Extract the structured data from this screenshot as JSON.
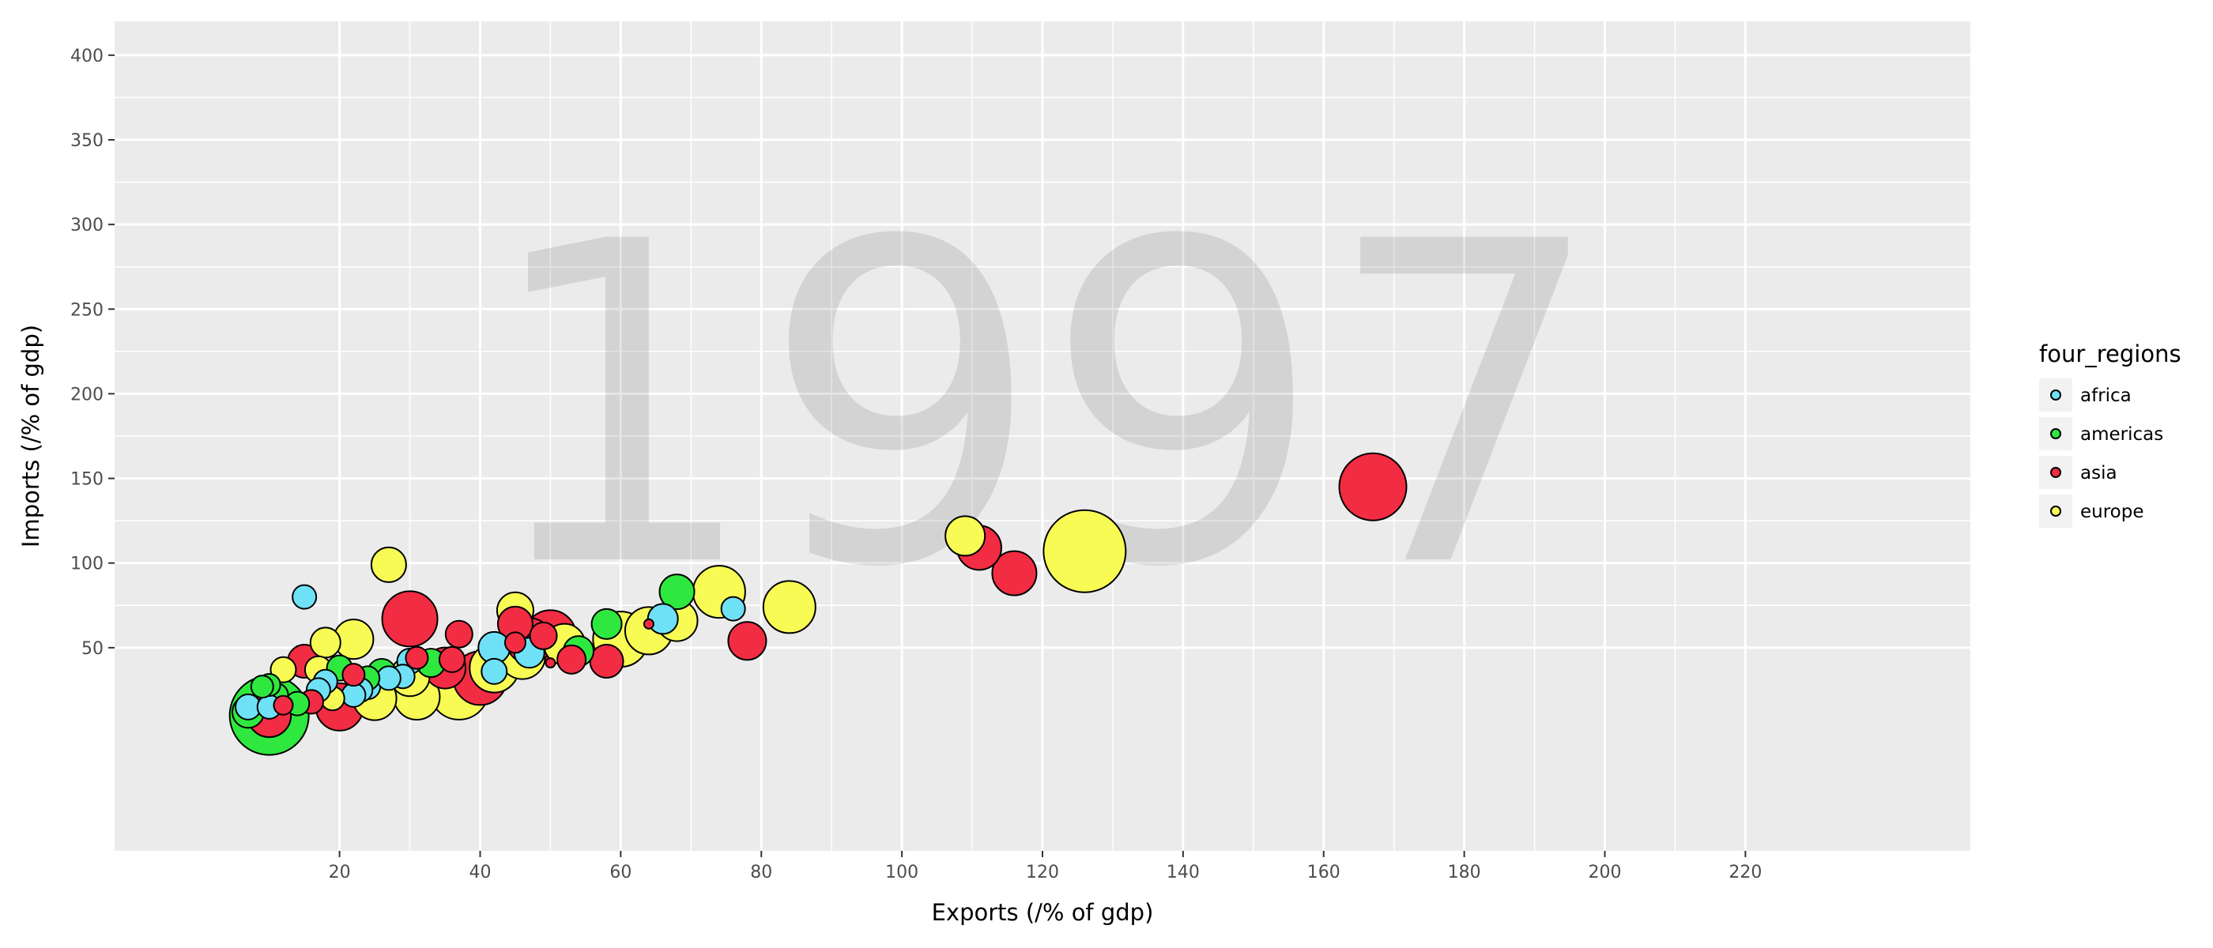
{
  "chart_data": {
    "type": "scatter",
    "title": "",
    "year_label": "1997",
    "xlabel": "Exports (/% of gdp)",
    "ylabel": "Imports (/% of gdp)",
    "xlim": [
      -12,
      252
    ],
    "ylim": [
      -70,
      420
    ],
    "xticks": [
      20,
      40,
      60,
      80,
      100,
      120,
      140,
      160,
      180,
      200,
      220
    ],
    "yticks": [
      50,
      100,
      150,
      200,
      250,
      300,
      350,
      400
    ],
    "grid": true,
    "legend": {
      "title": "four_regions",
      "placement": "right",
      "entries": [
        "africa",
        "americas",
        "asia",
        "europe"
      ]
    },
    "colors": {
      "africa": "#6fe1f6",
      "americas": "#2fe83f",
      "asia": "#f22c42",
      "europe": "#f8fb54",
      "panel": "#ebebeb",
      "grid": "#ffffff"
    },
    "points": [
      {
        "x": 10,
        "y": 10,
        "size": 100,
        "region": "americas"
      },
      {
        "x": 10,
        "y": 10,
        "size": 55,
        "region": "asia"
      },
      {
        "x": 20,
        "y": 15,
        "size": 60,
        "region": "asia"
      },
      {
        "x": 37,
        "y": 25,
        "size": 75,
        "region": "europe"
      },
      {
        "x": 40,
        "y": 32,
        "size": 68,
        "region": "asia"
      },
      {
        "x": 42,
        "y": 38,
        "size": 62,
        "region": "europe"
      },
      {
        "x": 46,
        "y": 45,
        "size": 58,
        "region": "europe"
      },
      {
        "x": 50,
        "y": 57,
        "size": 65,
        "region": "asia"
      },
      {
        "x": 52,
        "y": 52,
        "size": 52,
        "region": "europe"
      },
      {
        "x": 60,
        "y": 55,
        "size": 70,
        "region": "europe"
      },
      {
        "x": 64,
        "y": 60,
        "size": 60,
        "region": "europe"
      },
      {
        "x": 68,
        "y": 66,
        "size": 52,
        "region": "europe"
      },
      {
        "x": 74,
        "y": 83,
        "size": 66,
        "region": "europe"
      },
      {
        "x": 84,
        "y": 74,
        "size": 66,
        "region": "europe"
      },
      {
        "x": 126,
        "y": 107,
        "size": 104,
        "region": "europe"
      },
      {
        "x": 167,
        "y": 145,
        "size": 85,
        "region": "asia"
      },
      {
        "x": 116,
        "y": 94,
        "size": 56,
        "region": "asia"
      },
      {
        "x": 111,
        "y": 109,
        "size": 56,
        "region": "asia"
      },
      {
        "x": 109,
        "y": 116,
        "size": 50,
        "region": "europe"
      },
      {
        "x": 78,
        "y": 54,
        "size": 48,
        "region": "asia"
      },
      {
        "x": 30,
        "y": 67,
        "size": 70,
        "region": "asia"
      },
      {
        "x": 47,
        "y": 54,
        "size": 58,
        "region": "asia"
      },
      {
        "x": 31,
        "y": 21,
        "size": 58,
        "region": "europe"
      },
      {
        "x": 25,
        "y": 20,
        "size": 55,
        "region": "europe"
      },
      {
        "x": 35,
        "y": 38,
        "size": 52,
        "region": "asia"
      },
      {
        "x": 30,
        "y": 33,
        "size": 50,
        "region": "europe"
      },
      {
        "x": 27,
        "y": 99,
        "size": 44,
        "region": "europe"
      },
      {
        "x": 22,
        "y": 55,
        "size": 50,
        "region": "europe"
      },
      {
        "x": 45,
        "y": 72,
        "size": 46,
        "region": "europe"
      },
      {
        "x": 45,
        "y": 64,
        "size": 44,
        "region": "asia"
      },
      {
        "x": 15,
        "y": 42,
        "size": 42,
        "region": "asia"
      },
      {
        "x": 18,
        "y": 53,
        "size": 38,
        "region": "europe"
      },
      {
        "x": 58,
        "y": 42,
        "size": 42,
        "region": "asia"
      },
      {
        "x": 54,
        "y": 48,
        "size": 38,
        "region": "americas"
      },
      {
        "x": 58,
        "y": 64,
        "size": 38,
        "region": "americas"
      },
      {
        "x": 68,
        "y": 83,
        "size": 44,
        "region": "americas"
      },
      {
        "x": 15,
        "y": 80,
        "size": 30,
        "region": "africa"
      },
      {
        "x": 76,
        "y": 73,
        "size": 30,
        "region": "africa"
      },
      {
        "x": 66,
        "y": 67,
        "size": 38,
        "region": "africa"
      },
      {
        "x": 64,
        "y": 64,
        "size": 12,
        "region": "asia"
      },
      {
        "x": 47,
        "y": 47,
        "size": 38,
        "region": "africa"
      },
      {
        "x": 49,
        "y": 57,
        "size": 34,
        "region": "asia"
      },
      {
        "x": 50,
        "y": 41,
        "size": 12,
        "region": "asia"
      },
      {
        "x": 53,
        "y": 43,
        "size": 36,
        "region": "asia"
      },
      {
        "x": 42,
        "y": 50,
        "size": 40,
        "region": "africa"
      },
      {
        "x": 42,
        "y": 36,
        "size": 32,
        "region": "africa"
      },
      {
        "x": 45,
        "y": 53,
        "size": 26,
        "region": "asia"
      },
      {
        "x": 37,
        "y": 58,
        "size": 34,
        "region": "asia"
      },
      {
        "x": 36,
        "y": 43,
        "size": 32,
        "region": "asia"
      },
      {
        "x": 33,
        "y": 41,
        "size": 36,
        "region": "americas"
      },
      {
        "x": 30,
        "y": 42,
        "size": 32,
        "region": "africa"
      },
      {
        "x": 31,
        "y": 44,
        "size": 28,
        "region": "asia"
      },
      {
        "x": 29,
        "y": 33,
        "size": 30,
        "region": "africa"
      },
      {
        "x": 27,
        "y": 32,
        "size": 30,
        "region": "africa"
      },
      {
        "x": 26,
        "y": 35,
        "size": 36,
        "region": "americas"
      },
      {
        "x": 24,
        "y": 32,
        "size": 30,
        "region": "americas"
      },
      {
        "x": 24,
        "y": 27,
        "size": 32,
        "region": "africa"
      },
      {
        "x": 23,
        "y": 25,
        "size": 30,
        "region": "africa"
      },
      {
        "x": 22,
        "y": 22,
        "size": 30,
        "region": "africa"
      },
      {
        "x": 22,
        "y": 34,
        "size": 28,
        "region": "asia"
      },
      {
        "x": 20,
        "y": 38,
        "size": 32,
        "region": "americas"
      },
      {
        "x": 19,
        "y": 20,
        "size": 30,
        "region": "europe"
      },
      {
        "x": 18,
        "y": 30,
        "size": 30,
        "region": "africa"
      },
      {
        "x": 17,
        "y": 37,
        "size": 34,
        "region": "europe"
      },
      {
        "x": 17,
        "y": 25,
        "size": 30,
        "region": "africa"
      },
      {
        "x": 16,
        "y": 18,
        "size": 30,
        "region": "asia"
      },
      {
        "x": 14,
        "y": 17,
        "size": 30,
        "region": "americas"
      },
      {
        "x": 12,
        "y": 16,
        "size": 24,
        "region": "asia"
      },
      {
        "x": 12,
        "y": 37,
        "size": 32,
        "region": "europe"
      },
      {
        "x": 11,
        "y": 22,
        "size": 30,
        "region": "americas"
      },
      {
        "x": 10,
        "y": 28,
        "size": 28,
        "region": "americas"
      },
      {
        "x": 10,
        "y": 15,
        "size": 30,
        "region": "africa"
      },
      {
        "x": 9,
        "y": 27,
        "size": 28,
        "region": "americas"
      },
      {
        "x": 7,
        "y": 12,
        "size": 40,
        "region": "americas"
      },
      {
        "x": 7,
        "y": 15,
        "size": 32,
        "region": "africa"
      }
    ]
  }
}
